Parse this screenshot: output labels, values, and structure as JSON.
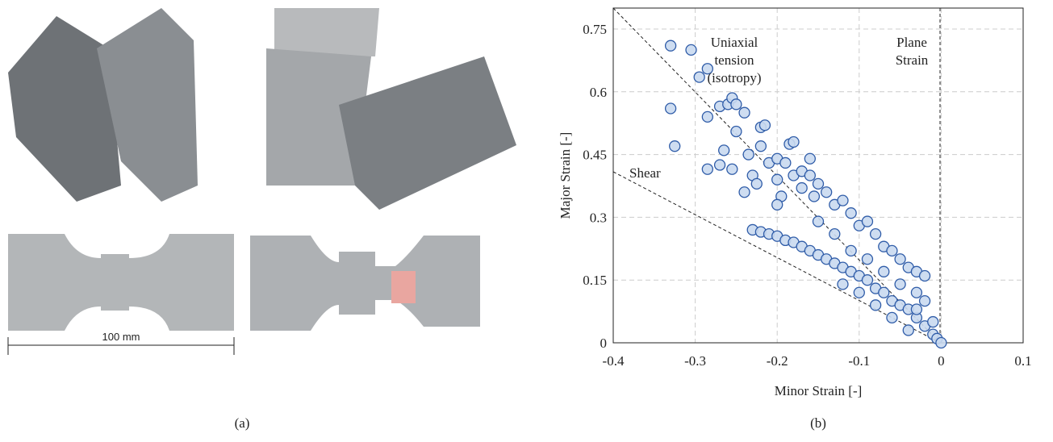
{
  "panel_a": {
    "scale_label": "100 mm",
    "caption": "(a)"
  },
  "chart_data": {
    "type": "scatter",
    "caption": "(b)",
    "xlabel": "Minor Strain [-]",
    "ylabel": "Major Strain [-]",
    "annotations": [
      [
        "Uniaxial",
        "tension",
        "(isotropy)"
      ],
      [
        "Plane",
        "Strain"
      ],
      [
        "Shear"
      ]
    ],
    "color": "#2f5ca8",
    "fill": "#c9d9ef",
    "xlim": [
      -0.4,
      0.1
    ],
    "xticks": [
      -0.4,
      -0.3,
      -0.2,
      -0.1,
      0,
      0.1
    ],
    "ylim": [
      0,
      0.8
    ],
    "yticks": [
      0,
      0.15,
      0.3,
      0.45,
      0.6,
      0.75
    ],
    "grid": true,
    "x": [
      -0.33,
      -0.305,
      -0.295,
      -0.285,
      -0.33,
      -0.325,
      -0.285,
      -0.27,
      -0.26,
      -0.255,
      -0.25,
      -0.24,
      -0.25,
      -0.265,
      -0.285,
      -0.27,
      -0.255,
      -0.235,
      -0.23,
      -0.225,
      -0.24,
      -0.22,
      -0.215,
      -0.22,
      -0.21,
      -0.2,
      -0.185,
      -0.18,
      -0.19,
      -0.2,
      -0.195,
      -0.2,
      -0.18,
      -0.17,
      -0.16,
      -0.16,
      -0.17,
      -0.155,
      -0.15,
      -0.14,
      -0.13,
      -0.12,
      -0.11,
      -0.1,
      -0.09,
      -0.08,
      -0.07,
      -0.06,
      -0.05,
      -0.04,
      -0.03,
      -0.02,
      -0.15,
      -0.13,
      -0.11,
      -0.09,
      -0.07,
      -0.05,
      -0.03,
      -0.23,
      -0.22,
      -0.21,
      -0.2,
      -0.19,
      -0.18,
      -0.17,
      -0.16,
      -0.15,
      -0.14,
      -0.13,
      -0.12,
      -0.11,
      -0.1,
      -0.09,
      -0.08,
      -0.07,
      -0.06,
      -0.05,
      -0.04,
      -0.03,
      -0.02,
      -0.01,
      -0.005,
      0,
      -0.06,
      -0.08,
      -0.04,
      -0.02,
      -0.03,
      -0.01,
      -0.1,
      -0.12
    ],
    "values": [
      0.71,
      0.7,
      0.635,
      0.655,
      0.56,
      0.47,
      0.54,
      0.565,
      0.57,
      0.585,
      0.57,
      0.55,
      0.505,
      0.46,
      0.415,
      0.425,
      0.415,
      0.45,
      0.4,
      0.38,
      0.36,
      0.515,
      0.52,
      0.47,
      0.43,
      0.44,
      0.475,
      0.48,
      0.43,
      0.39,
      0.35,
      0.33,
      0.4,
      0.41,
      0.44,
      0.4,
      0.37,
      0.35,
      0.38,
      0.36,
      0.33,
      0.34,
      0.31,
      0.28,
      0.29,
      0.26,
      0.23,
      0.22,
      0.2,
      0.18,
      0.17,
      0.16,
      0.29,
      0.26,
      0.22,
      0.2,
      0.17,
      0.14,
      0.12,
      0.27,
      0.265,
      0.26,
      0.255,
      0.245,
      0.24,
      0.23,
      0.22,
      0.21,
      0.2,
      0.19,
      0.18,
      0.17,
      0.16,
      0.15,
      0.13,
      0.12,
      0.1,
      0.09,
      0.08,
      0.06,
      0.04,
      0.02,
      0.01,
      0,
      0.06,
      0.09,
      0.03,
      0.1,
      0.08,
      0.05,
      0.12,
      0.14
    ]
  }
}
